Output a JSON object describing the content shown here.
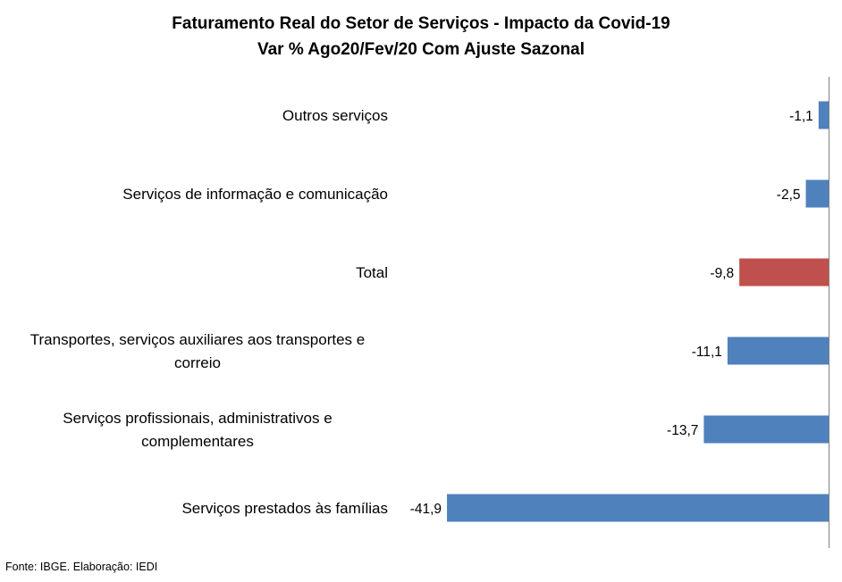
{
  "chart_data": {
    "type": "bar",
    "orientation": "horizontal",
    "title": "Faturamento Real do Setor de Serviços - Impacto da Covid-19",
    "subtitle": "Var % Ago20/Fev/20 Com Ajuste Sazonal",
    "categories": [
      [
        "Outros serviços"
      ],
      [
        "Serviços de informação e comunicação"
      ],
      [
        "Total"
      ],
      [
        "Transportes, serviços auxiliares aos transportes e",
        "correio"
      ],
      [
        "Serviços profissionais, administrativos e",
        "complementares"
      ],
      [
        "Serviços prestados às famílias"
      ]
    ],
    "values": [
      -1.1,
      -2.5,
      -9.8,
      -11.1,
      -13.7,
      -41.9
    ],
    "value_labels": [
      "-1,1",
      "-2,5",
      "-9,8",
      "-11,1",
      "-13,7",
      "-41,9"
    ],
    "bar_colors": [
      "#4F81BD",
      "#4F81BD",
      "#C0504D",
      "#4F81BD",
      "#4F81BD",
      "#4F81BD"
    ],
    "xlim": [
      -42.2,
      0
    ],
    "grid": false,
    "legend": "none"
  },
  "colors": {
    "series": "#4F81BD",
    "highlight": "#C0504D",
    "axis": "#808080"
  },
  "source": "Fonte: IBGE. Elaboração: IEDI"
}
